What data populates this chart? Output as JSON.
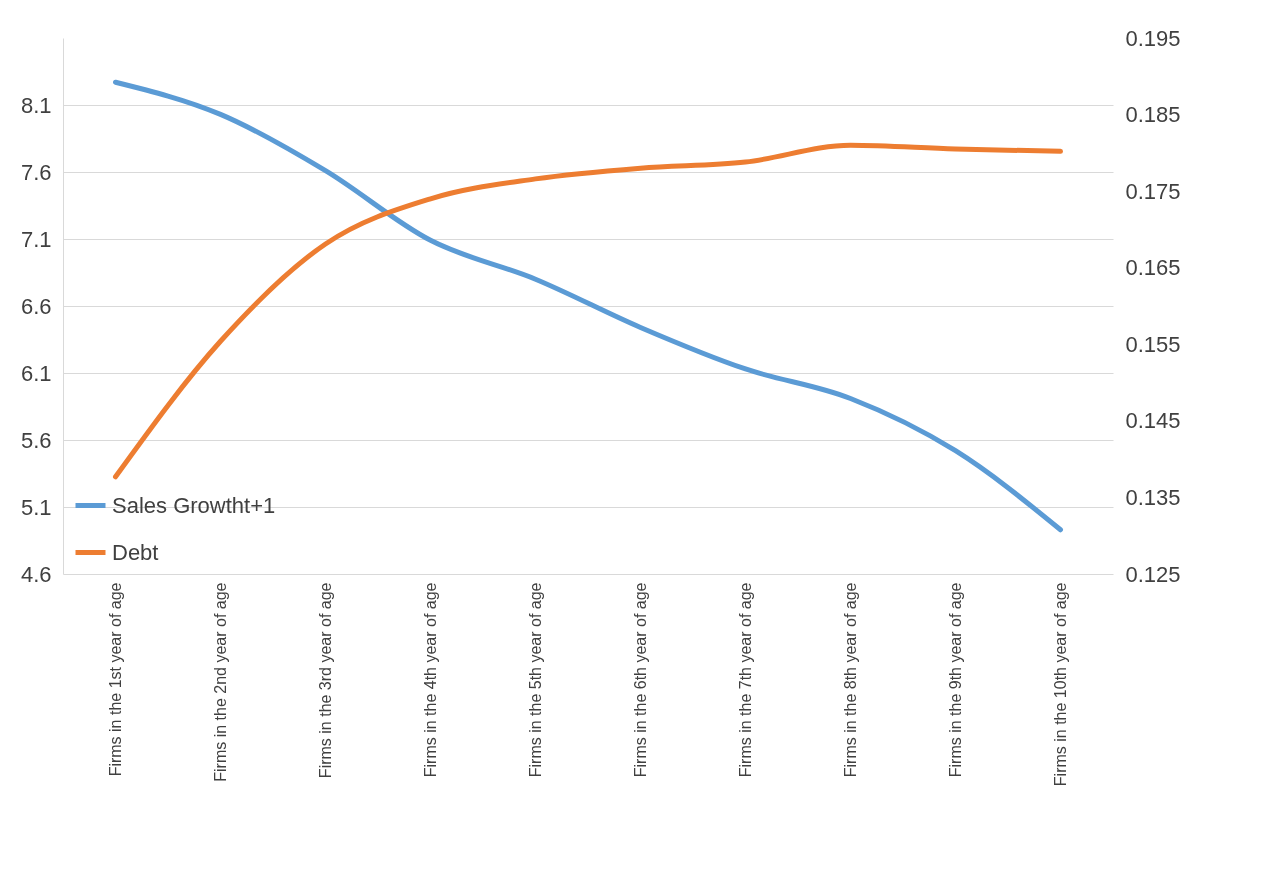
{
  "chart_data": {
    "type": "line",
    "categories": [
      "Firms in the 1st year of age",
      "Firms in the 2nd year of age",
      "Firms in the 3rd year of age",
      "Firms in the 4th year of age",
      "Firms in the 5th year of age",
      "Firms in the 6th year of age",
      "Firms in the 7th year of age",
      "Firms in the 8th year of age",
      "Firms in the 9th year of age",
      "Firms in the 10th year of age"
    ],
    "series": [
      {
        "name": "Sales Growtht+1",
        "color": "#5b9bd5",
        "values": [
          8.27,
          8.03,
          7.61,
          7.09,
          6.8,
          6.44,
          6.13,
          5.91,
          5.52,
          4.93
        ]
      },
      {
        "name": "Debt",
        "color": "#ed7d31",
        "axis": "y2",
        "values": [
          0.1377,
          0.1554,
          0.1681,
          0.174,
          0.1766,
          0.178,
          0.1788,
          0.181,
          0.1805,
          0.1802
        ]
      }
    ],
    "ylim": [
      4.6,
      8.6
    ],
    "yticks": [
      4.6,
      5.1,
      5.6,
      6.1,
      6.6,
      7.1,
      7.6,
      8.1
    ],
    "y2lim": [
      0.125,
      0.195
    ],
    "y2ticks": [
      0.125,
      0.135,
      0.145,
      0.155,
      0.165,
      0.175,
      0.185,
      0.195
    ],
    "grid": "y",
    "legend": "bottom left",
    "marker": "none",
    "line_style": "solid"
  }
}
